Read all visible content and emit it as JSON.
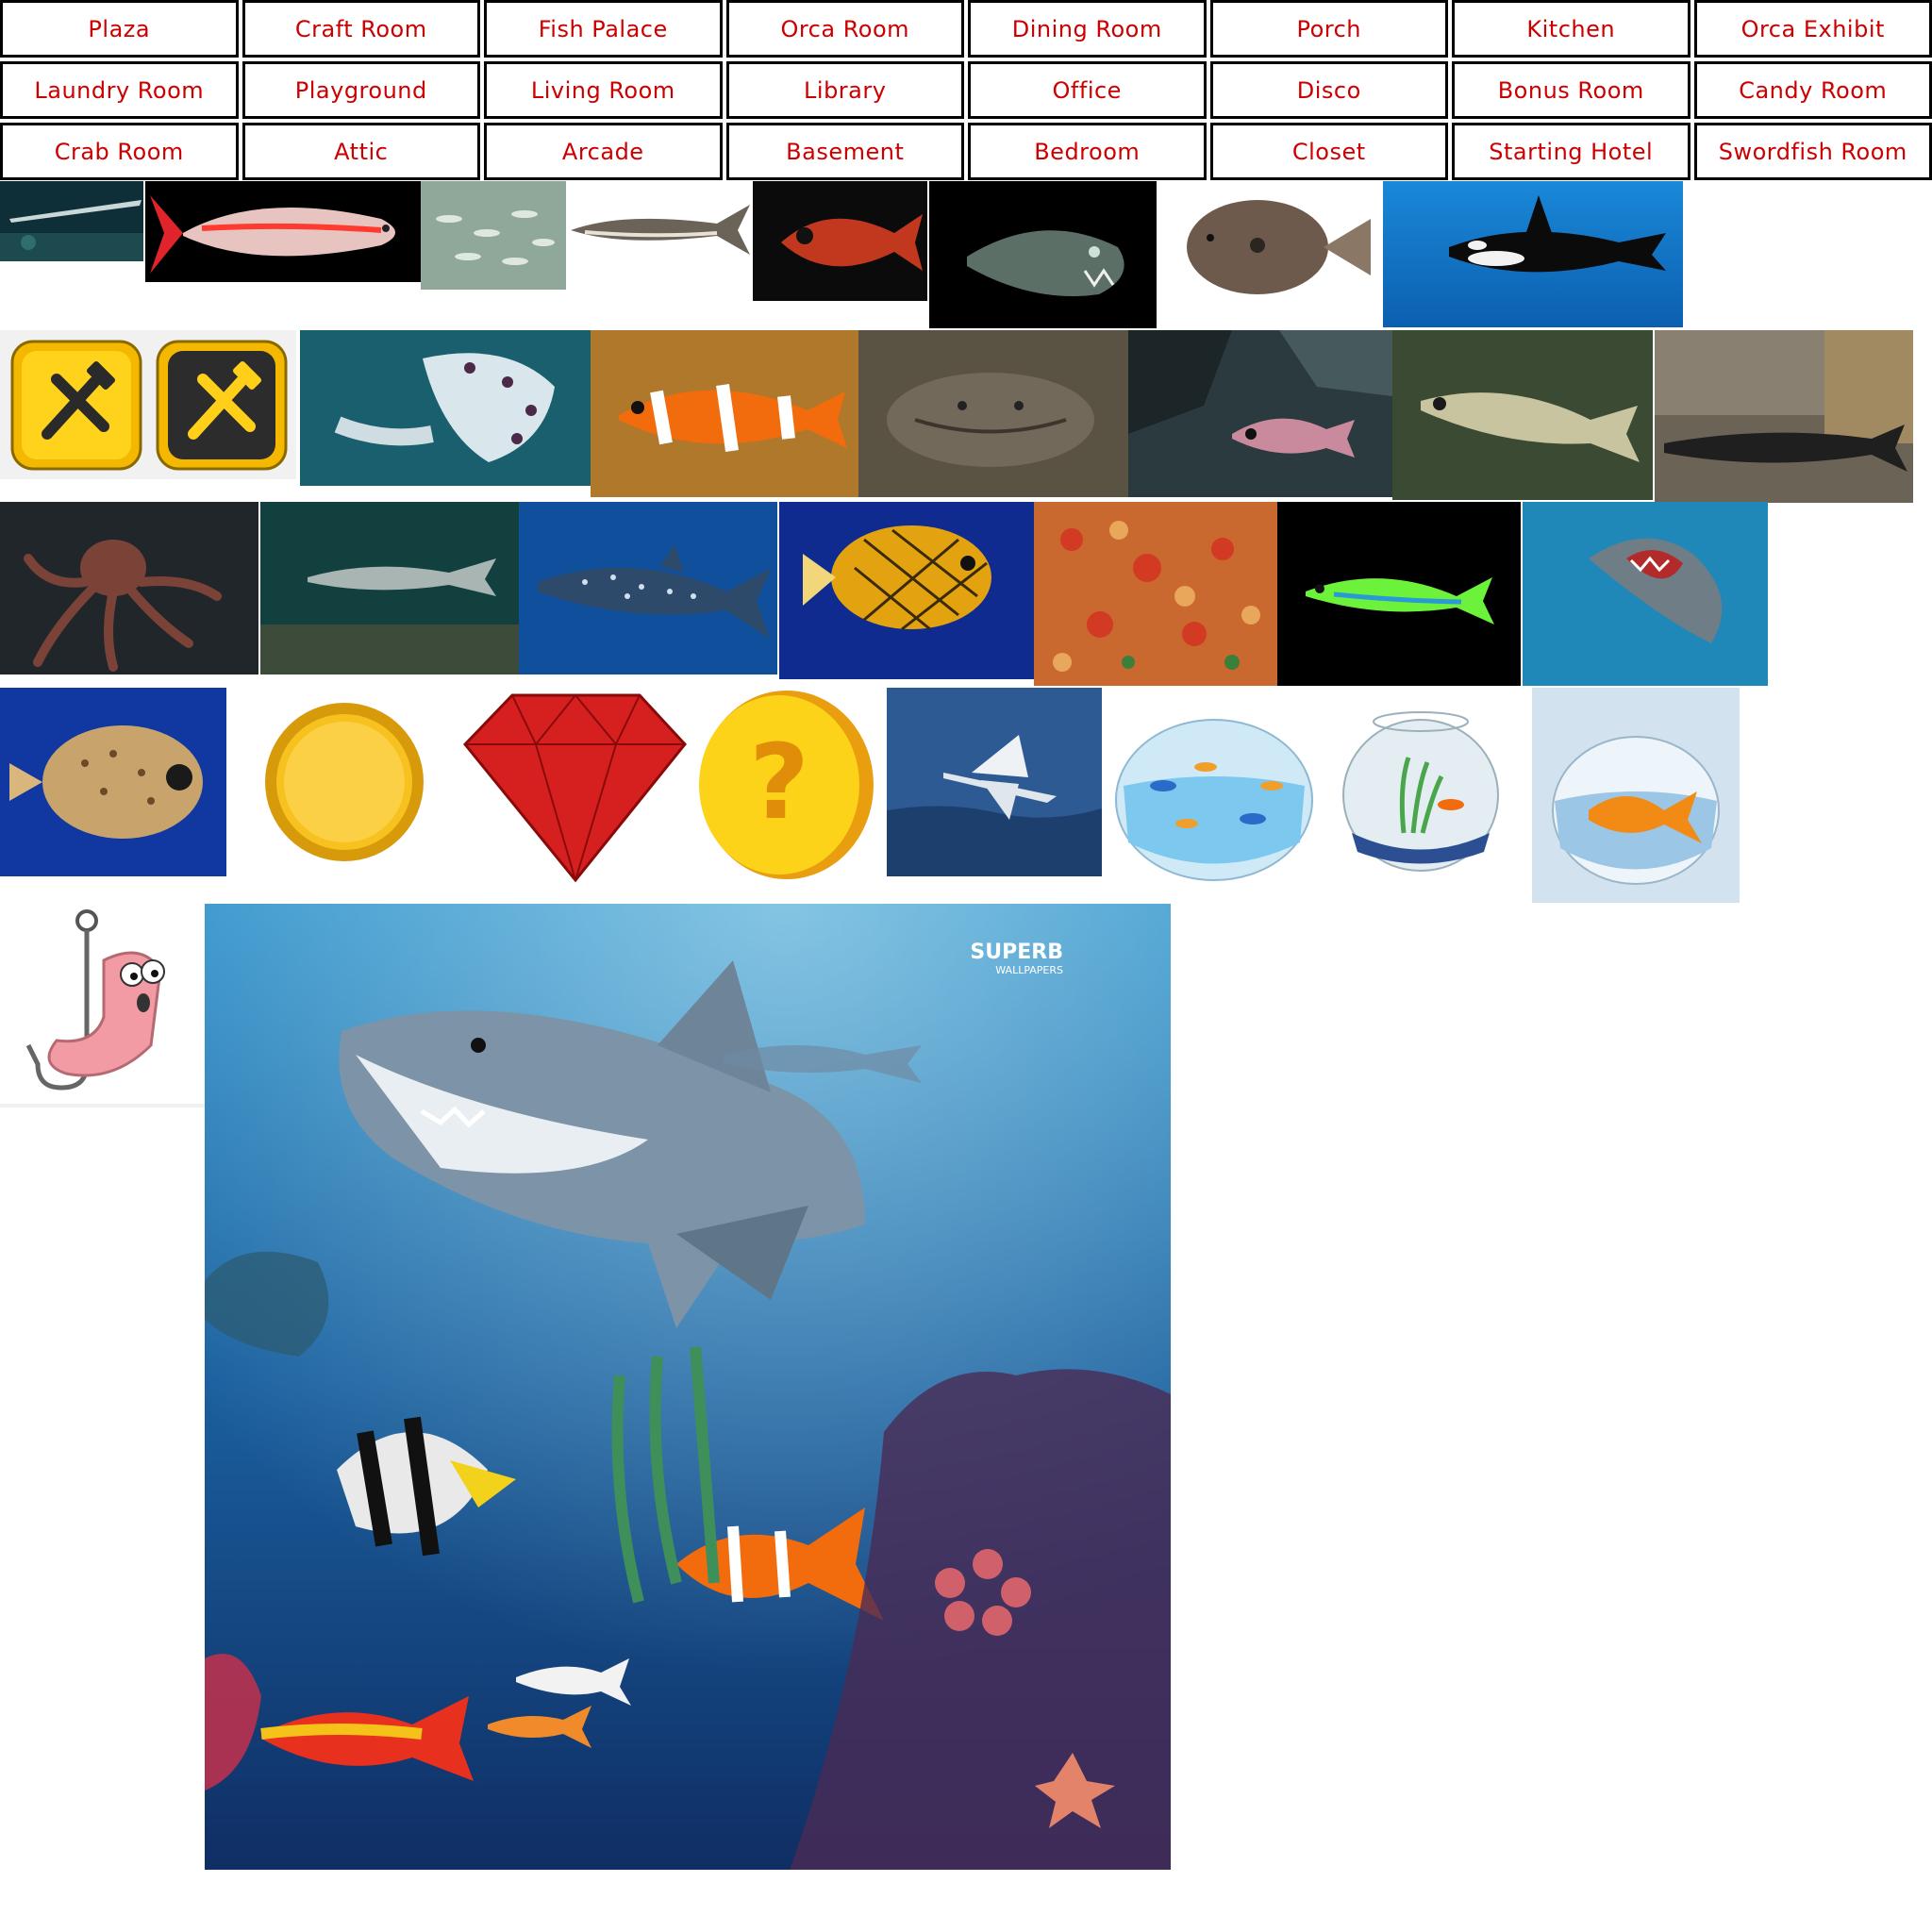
{
  "rooms": [
    "Plaza",
    "Craft Room",
    "Fish Palace",
    "Orca Room",
    "Dining Room",
    "Porch",
    "Kitchen",
    "Orca Exhibit",
    "Laundry Room",
    "Playground",
    "Living Room",
    "Library",
    "Office",
    "Disco",
    "Bonus Room",
    "Candy Room",
    "Crab Room",
    "Attic",
    "Arcade",
    "Basement",
    "Bedroom",
    "Closet",
    "Starting Hotel",
    "Swordfish Room"
  ],
  "wallpaper": {
    "brand": "SUPERB",
    "brand_sub": "WALLPAPERS"
  },
  "colors": {
    "room_text": "#cc0000",
    "room_border": "#000000",
    "ocean": "#1b6aa8"
  },
  "icons": [
    "craft-tools-icon",
    "coin-icon",
    "ruby-icon",
    "question-coin-icon"
  ]
}
